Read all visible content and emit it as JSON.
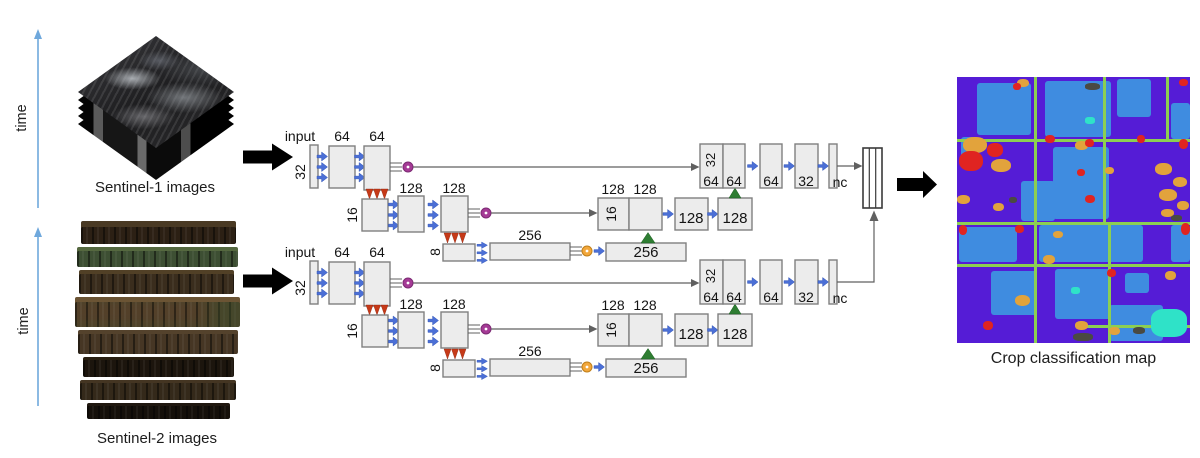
{
  "inputs": {
    "sentinel1": {
      "time_label": "time",
      "caption": "Sentinel-1 images"
    },
    "sentinel2": {
      "time_label": "time",
      "caption": "Sentinel-2 images"
    }
  },
  "unets": [
    {
      "input_label": "input",
      "enc": {
        "in": "32",
        "l1a": "64",
        "l1b": "64",
        "l2_in": "16",
        "l2a": "128",
        "l2b": "128",
        "l3_in": "8",
        "bottleneck": "256"
      },
      "dec": {
        "d3": "256",
        "d2_in": "16",
        "d2_cat_a": "128",
        "d2_cat_b": "128",
        "d2a": "128",
        "d2b": "128",
        "d1_in": "32",
        "d1_cat_a": "64",
        "d1_cat_b": "64",
        "d1a": "64",
        "d1b": "32",
        "out": "nc"
      }
    },
    {
      "input_label": "input",
      "enc": {
        "in": "32",
        "l1a": "64",
        "l1b": "64",
        "l2_in": "16",
        "l2a": "128",
        "l2b": "128",
        "l3_in": "8",
        "bottleneck": "256"
      },
      "dec": {
        "d3": "256",
        "d2_in": "16",
        "d2_cat_a": "128",
        "d2_cat_b": "128",
        "d2a": "128",
        "d2b": "128",
        "d1_in": "32",
        "d1_cat_a": "64",
        "d1_cat_b": "64",
        "d1a": "64",
        "d1b": "32",
        "out": "nc"
      }
    }
  ],
  "output": {
    "caption": "Crop classification map",
    "map": {
      "colors": {
        "base": "#551cd6",
        "field_blue": "#3f8ce0",
        "boundary_green": "#8ccf52",
        "red": "#e02421",
        "orange": "#e2a33c",
        "cyan": "#2fe2c8",
        "dark": "#4a4a42"
      },
      "grid_v": [
        [
          77,
          0,
          266
        ],
        [
          146,
          0,
          147
        ],
        [
          209,
          0,
          64
        ],
        [
          151,
          147,
          119
        ]
      ],
      "grid_h": [
        [
          0,
          62,
          233
        ],
        [
          0,
          145,
          233
        ],
        [
          0,
          187,
          233
        ],
        [
          120,
          248,
          113
        ]
      ],
      "patches": {
        "blue": [
          [
            20,
            6,
            54,
            52
          ],
          [
            88,
            4,
            66,
            56
          ],
          [
            160,
            2,
            34,
            38
          ],
          [
            214,
            26,
            19,
            36
          ],
          [
            96,
            70,
            56,
            72
          ],
          [
            64,
            104,
            34,
            40
          ],
          [
            2,
            150,
            58,
            35
          ],
          [
            82,
            148,
            104,
            37
          ],
          [
            214,
            148,
            19,
            37
          ],
          [
            34,
            194,
            46,
            44
          ],
          [
            98,
            192,
            56,
            50
          ],
          [
            152,
            228,
            54,
            36
          ],
          [
            4,
            60,
            14,
            28
          ],
          [
            168,
            196,
            24,
            20
          ]
        ],
        "orange": [
          [
            6,
            60,
            24,
            16
          ],
          [
            34,
            82,
            20,
            13
          ],
          [
            118,
            64,
            13,
            9
          ],
          [
            60,
            2,
            12,
            8
          ],
          [
            86,
            178,
            12,
            9
          ],
          [
            58,
            218,
            15,
            11
          ],
          [
            118,
            244,
            13,
            9
          ],
          [
            208,
            194,
            11,
            9
          ],
          [
            0,
            118,
            13,
            9
          ],
          [
            198,
            86,
            17,
            12
          ],
          [
            216,
            100,
            14,
            10
          ],
          [
            202,
            112,
            18,
            12
          ],
          [
            220,
            124,
            12,
            9
          ],
          [
            204,
            132,
            13,
            8
          ],
          [
            148,
            90,
            9,
            7
          ],
          [
            36,
            126,
            11,
            8
          ],
          [
            152,
            250,
            11,
            8
          ],
          [
            96,
            154,
            10,
            7
          ]
        ],
        "red": [
          [
            2,
            74,
            24,
            20
          ],
          [
            30,
            66,
            16,
            14
          ],
          [
            88,
            58,
            10,
            8
          ],
          [
            128,
            62,
            9,
            8
          ],
          [
            180,
            58,
            8,
            8
          ],
          [
            222,
            62,
            9,
            10
          ],
          [
            58,
            148,
            9,
            8
          ],
          [
            128,
            118,
            10,
            8
          ],
          [
            2,
            148,
            8,
            10
          ],
          [
            150,
            192,
            9,
            8
          ],
          [
            210,
            238,
            10,
            8
          ],
          [
            26,
            244,
            10,
            9
          ],
          [
            224,
            146,
            9,
            12
          ],
          [
            120,
            92,
            8,
            7
          ],
          [
            56,
            6,
            8,
            7
          ],
          [
            222,
            2,
            9,
            7
          ]
        ],
        "cyan": [
          [
            194,
            232,
            36,
            28
          ],
          [
            114,
            210,
            9,
            7
          ],
          [
            128,
            40,
            10,
            7
          ]
        ],
        "dark": [
          [
            128,
            6,
            15,
            7
          ],
          [
            116,
            256,
            20,
            8
          ],
          [
            52,
            120,
            8,
            6
          ],
          [
            214,
            138,
            11,
            6
          ],
          [
            176,
            250,
            12,
            7
          ]
        ]
      }
    }
  },
  "palette": {
    "boxfill": "#ececec",
    "boxstroke": "#7f7f7f",
    "bluearrow": "#4b6fd6",
    "redarrow": "#c63a18",
    "green": "#2e7d32",
    "purple": "#a53a96",
    "orange": "#f2a73b",
    "line": "#606060",
    "timeblue": "#6fa8dc"
  }
}
